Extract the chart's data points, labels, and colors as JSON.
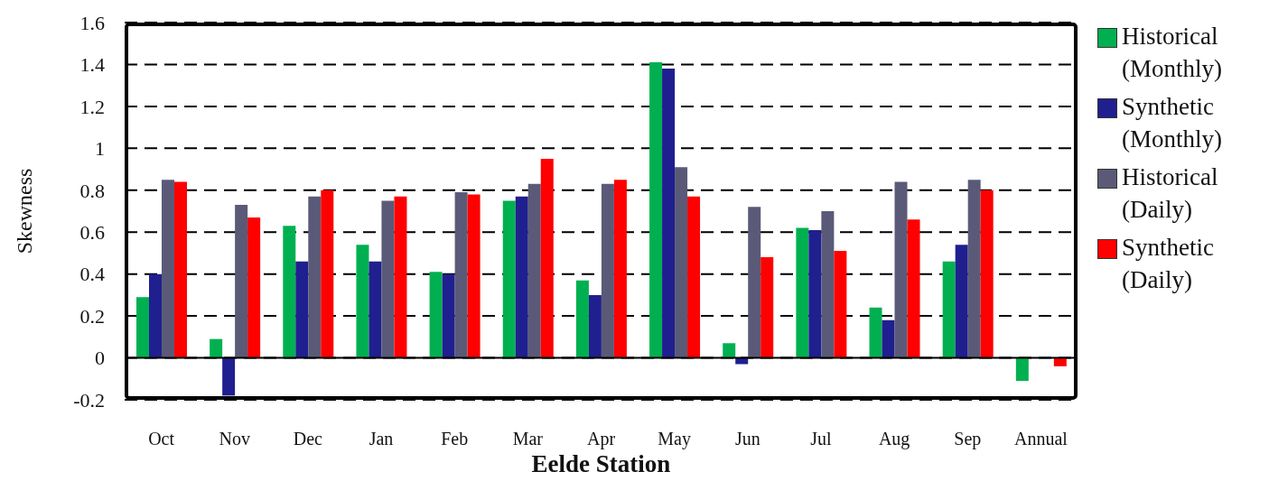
{
  "chart_data": {
    "type": "bar",
    "xlabel": "Eelde Station",
    "ylabel": "Skewness",
    "categories": [
      "Oct",
      "Nov",
      "Dec",
      "Jan",
      "Feb",
      "Mar",
      "Apr",
      "May",
      "Jun",
      "Jul",
      "Aug",
      "Sep",
      "Annual"
    ],
    "series": [
      {
        "name": "Historical (Monthly)",
        "color": "#00b050",
        "values": [
          0.29,
          0.09,
          0.63,
          0.54,
          0.41,
          0.75,
          0.37,
          1.41,
          0.07,
          0.62,
          0.24,
          0.46,
          -0.11
        ]
      },
      {
        "name": "Synthetic (Monthly)",
        "color": "#1f1f8f",
        "values": [
          0.4,
          -0.18,
          0.46,
          0.46,
          0.4,
          0.77,
          0.3,
          1.38,
          -0.03,
          0.61,
          0.18,
          0.54,
          null
        ]
      },
      {
        "name": "Historical (Daily)",
        "color": "#5a5a78",
        "values": [
          0.85,
          0.73,
          0.77,
          0.75,
          0.79,
          0.83,
          0.83,
          0.91,
          0.72,
          0.7,
          0.84,
          0.85,
          null
        ]
      },
      {
        "name": "Synthetic (Daily)",
        "color": "#ff0000",
        "values": [
          0.84,
          0.67,
          0.8,
          0.77,
          0.78,
          0.95,
          0.85,
          0.77,
          0.48,
          0.51,
          0.66,
          0.8,
          -0.04
        ]
      }
    ],
    "ylim": [
      -0.2,
      1.6
    ],
    "yticks": [
      -0.2,
      0,
      0.2,
      0.4,
      0.6,
      0.8,
      1,
      1.2,
      1.4,
      1.6
    ],
    "ref_lines": [
      {
        "axis": "y",
        "value": 0,
        "color": "#000000"
      }
    ],
    "grid": "y",
    "legend": "right"
  }
}
